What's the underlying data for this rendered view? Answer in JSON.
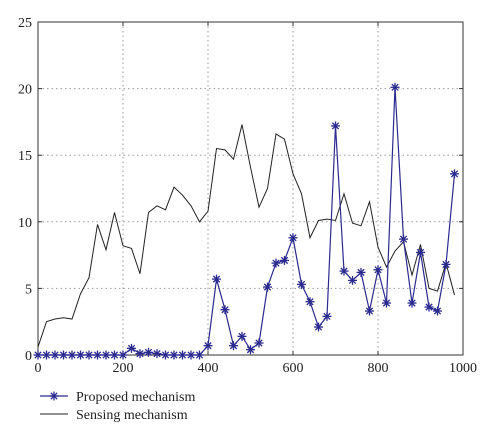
{
  "chart_data": {
    "type": "line",
    "title": "",
    "xlabel": "",
    "ylabel": "",
    "xlim": [
      0,
      1000
    ],
    "ylim": [
      0,
      25
    ],
    "xticks": [
      0,
      200,
      400,
      600,
      800,
      1000
    ],
    "yticks": [
      0,
      5,
      10,
      15,
      20,
      25
    ],
    "xtick_labels": [
      "0",
      "200",
      "400",
      "600",
      "800",
      "1000"
    ],
    "ytick_labels": [
      "0",
      "5",
      "10",
      "15",
      "20",
      "25"
    ],
    "grid": true,
    "legend_position": "bottom-left-outside",
    "x": [
      0,
      20,
      40,
      60,
      80,
      100,
      120,
      140,
      160,
      180,
      200,
      220,
      240,
      260,
      280,
      300,
      320,
      340,
      360,
      380,
      400,
      420,
      440,
      460,
      480,
      500,
      520,
      540,
      560,
      580,
      600,
      620,
      640,
      660,
      680,
      700,
      720,
      740,
      760,
      780,
      800,
      820,
      840,
      860,
      880,
      900,
      920,
      940,
      960,
      980
    ],
    "series": [
      {
        "name": "Proposed mechanism",
        "color": "#2a2a8f",
        "marker": "star",
        "values": [
          0,
          0,
          0,
          0,
          0,
          0,
          0,
          0,
          0,
          0,
          0,
          0.5,
          0.1,
          0.2,
          0.1,
          0,
          0,
          0,
          0,
          0,
          0.7,
          5.7,
          3.4,
          0.7,
          1.4,
          0.4,
          0.9,
          5.1,
          6.9,
          7.1,
          8.8,
          5.3,
          4.0,
          2.1,
          2.9,
          17.2,
          6.3,
          5.6,
          6.2,
          3.3,
          6.4,
          3.9,
          20.1,
          8.7,
          3.9,
          7.7,
          3.6,
          3.3,
          6.8,
          13.6
        ]
      },
      {
        "name": "Sensing mechanism",
        "color": "#222222",
        "marker": "none",
        "values": [
          0.6,
          2.5,
          2.7,
          2.8,
          2.7,
          4.6,
          5.8,
          9.8,
          7.9,
          10.7,
          8.2,
          8.0,
          6.1,
          10.7,
          11.2,
          10.9,
          12.6,
          12.0,
          11.2,
          10.0,
          10.8,
          15.5,
          15.4,
          14.7,
          17.3,
          14.1,
          11.1,
          12.5,
          16.6,
          16.2,
          13.6,
          12.1,
          8.8,
          10.1,
          10.2,
          10.1,
          12.1,
          9.9,
          9.7,
          11.5,
          8.1,
          6.6,
          7.8,
          8.5,
          6.0,
          8.3,
          5.0,
          4.8,
          6.9,
          4.5
        ]
      }
    ]
  }
}
